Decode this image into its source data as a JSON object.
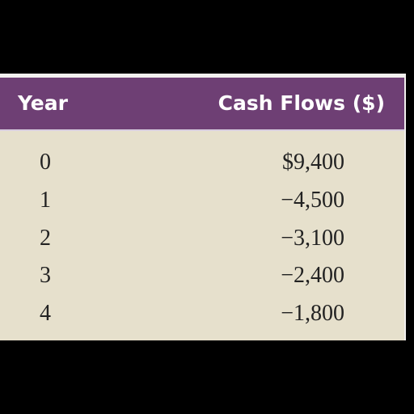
{
  "table": {
    "headers": {
      "year": "Year",
      "cash_flows": "Cash Flows ($)"
    },
    "rows": [
      {
        "year": "0",
        "cash_flow": "$9,400"
      },
      {
        "year": "1",
        "cash_flow": "−4,500"
      },
      {
        "year": "2",
        "cash_flow": "−3,100"
      },
      {
        "year": "3",
        "cash_flow": "−2,400"
      },
      {
        "year": "4",
        "cash_flow": "−1,800"
      }
    ]
  },
  "colors": {
    "header_bg": "#6e3f74",
    "body_bg": "#e6e0cc",
    "header_text": "#ffffff",
    "body_text": "#222222"
  }
}
